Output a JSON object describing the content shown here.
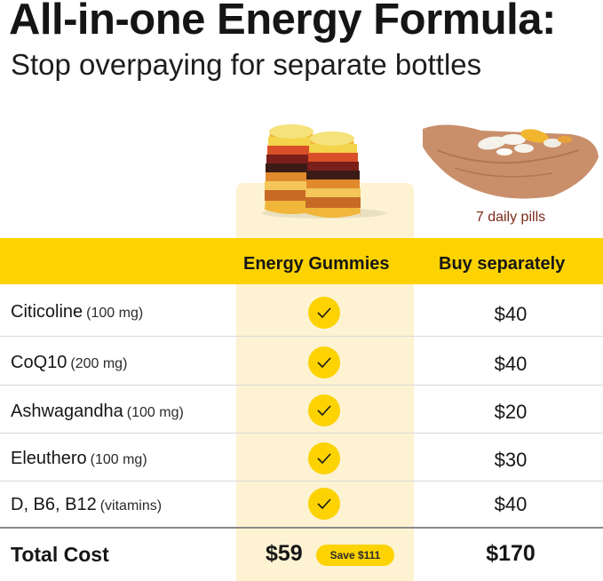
{
  "header": {
    "title": "All-in-one Energy Formula:",
    "subtitle": "Stop overpaying for separate bottles"
  },
  "images": {
    "gummies": "energy-gummies-photo",
    "pills": "hand-holding-pills-photo",
    "pills_caption": "7 daily pills"
  },
  "table": {
    "columns": [
      "Energy Gummies",
      "Buy separately"
    ],
    "rows": [
      {
        "name": "Citicoline",
        "dose": "(100 mg)",
        "included": true,
        "price": "$40"
      },
      {
        "name": "CoQ10",
        "dose": "(200 mg)",
        "included": true,
        "price": "$40"
      },
      {
        "name": "Ashwagandha",
        "dose": "(100 mg)",
        "included": true,
        "price": "$20"
      },
      {
        "name": "Eleuthero",
        "dose": "(100 mg)",
        "included": true,
        "price": "$30"
      },
      {
        "name": "D, B6, B12",
        "dose": "(vitamins)",
        "included": true,
        "price": "$40"
      }
    ],
    "total": {
      "label": "Total Cost",
      "ours": "$59",
      "save_badge": "Save $111",
      "theirs": "$170"
    }
  },
  "colors": {
    "accent": "#fcd200",
    "highlight_column": "#fdf3d2",
    "caption": "#7c2a1a"
  }
}
